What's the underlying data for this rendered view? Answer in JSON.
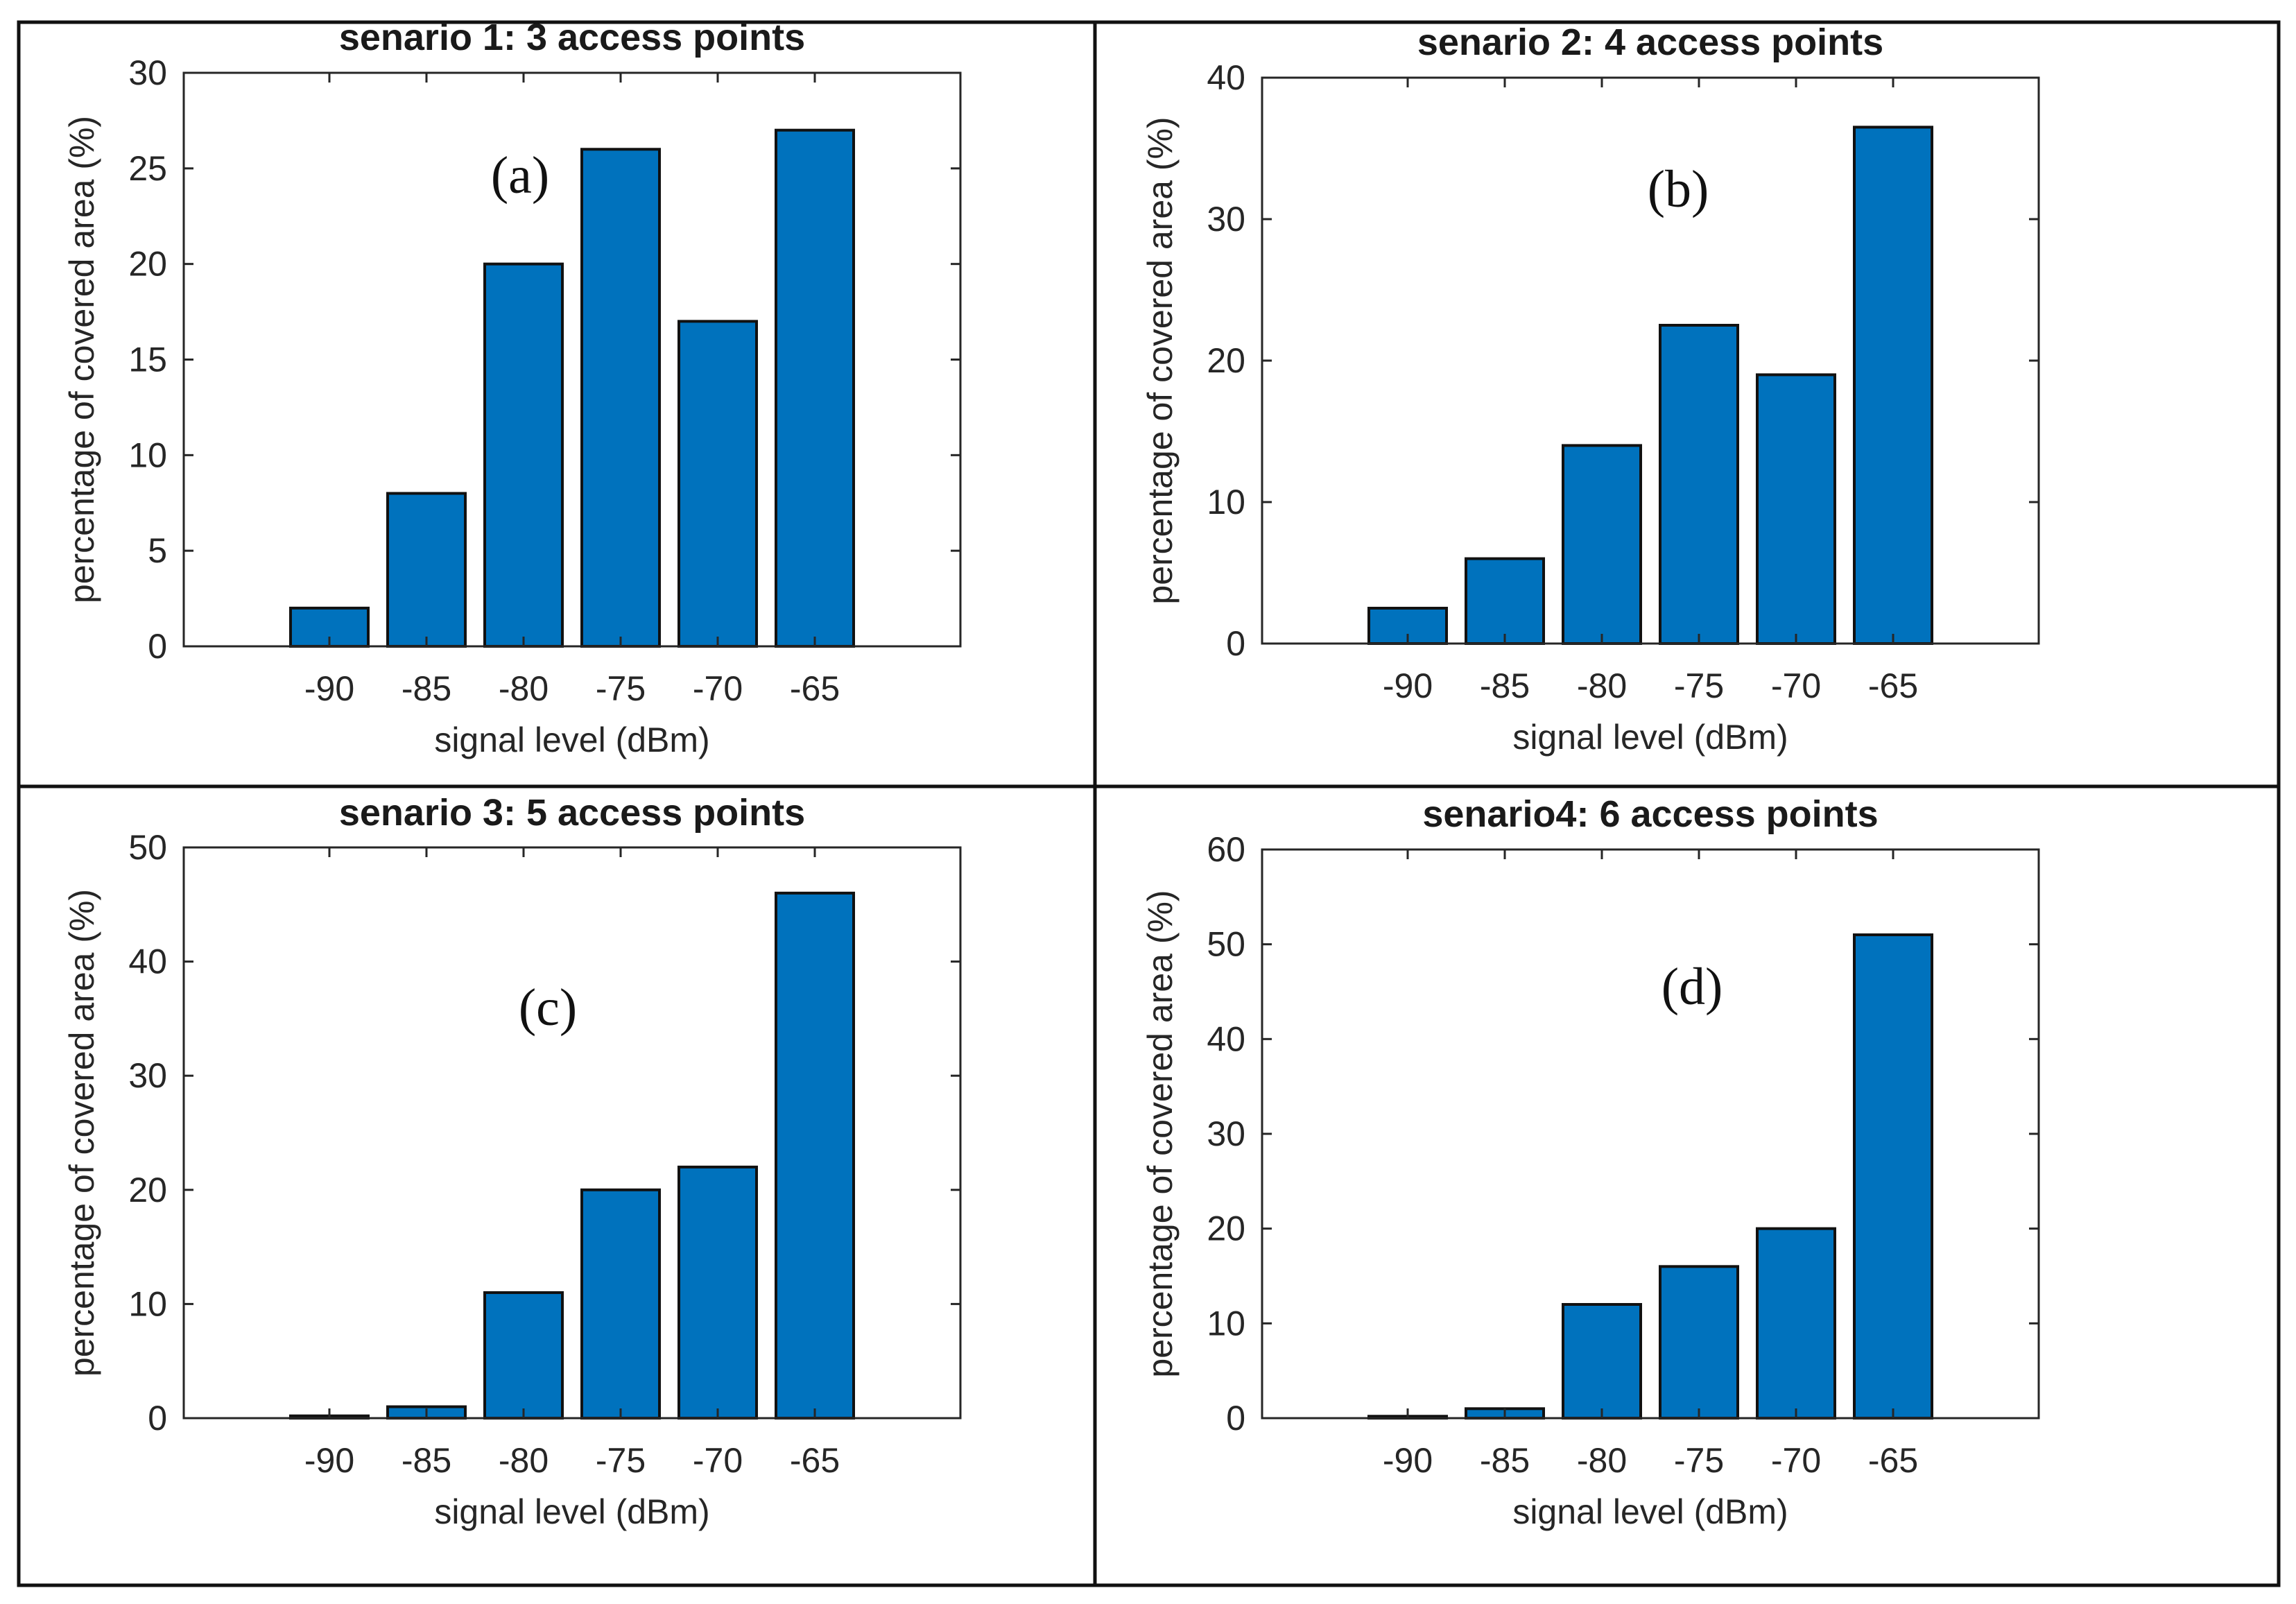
{
  "colors": {
    "bar_fill": "#0072BD",
    "bar_edge": "#111111",
    "axes": "#262626",
    "frame": "#111111",
    "background": "#ffffff"
  },
  "chart_data": [
    {
      "type": "bar",
      "title": "senario 1: 3 access points",
      "panel_label": "(a)",
      "categories": [
        "-90",
        "-85",
        "-80",
        "-75",
        "-70",
        "-65"
      ],
      "values": [
        2,
        8,
        20,
        26,
        17,
        27
      ],
      "xlabel": "signal level (dBm)",
      "ylabel": "percentage of covered area (%)",
      "ylim": [
        0,
        30
      ],
      "yticks": [
        "0",
        "5",
        "10",
        "15",
        "20",
        "25",
        "30"
      ],
      "grid": false
    },
    {
      "type": "bar",
      "title": "senario 2: 4 access points",
      "panel_label": "(b)",
      "categories": [
        "-90",
        "-85",
        "-80",
        "-75",
        "-70",
        "-65"
      ],
      "values": [
        2.5,
        6,
        14,
        22.5,
        19,
        36.5
      ],
      "xlabel": "signal level (dBm)",
      "ylabel": "percentage of covered area (%)",
      "ylim": [
        0,
        40
      ],
      "yticks": [
        "0",
        "10",
        "20",
        "30",
        "40"
      ],
      "grid": false
    },
    {
      "type": "bar",
      "title": "senario 3: 5 access points",
      "panel_label": "(c)",
      "categories": [
        "-90",
        "-85",
        "-80",
        "-75",
        "-70",
        "-65"
      ],
      "values": [
        0.2,
        1,
        11,
        20,
        22,
        46
      ],
      "xlabel": "signal level (dBm)",
      "ylabel": "percentage of covered area (%)",
      "ylim": [
        0,
        50
      ],
      "yticks": [
        "0",
        "10",
        "20",
        "30",
        "40",
        "50"
      ],
      "grid": false
    },
    {
      "type": "bar",
      "title": "senario4:  6 access points",
      "panel_label": "(d)",
      "categories": [
        "-90",
        "-85",
        "-80",
        "-75",
        "-70",
        "-65"
      ],
      "values": [
        0.2,
        1,
        12,
        16,
        20,
        51
      ],
      "xlabel": "signal level (dBm)",
      "ylabel": "percentage of covered area (%)",
      "ylim": [
        0,
        60
      ],
      "yticks": [
        "0",
        "10",
        "20",
        "30",
        "40",
        "50",
        "60"
      ],
      "grid": false
    }
  ]
}
